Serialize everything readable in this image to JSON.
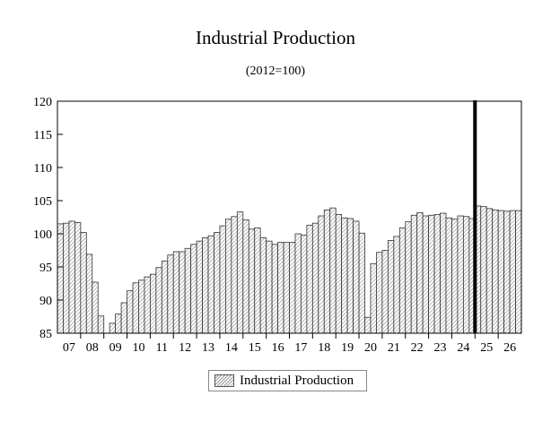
{
  "chart_data": {
    "type": "bar",
    "title": "Industrial Production",
    "subtitle": "(2012=100)",
    "legend": {
      "placement": "bottom-center",
      "entries": [
        "Industrial Production"
      ]
    },
    "ylim": [
      85,
      120
    ],
    "yticks": [
      85,
      90,
      95,
      100,
      105,
      110,
      115,
      120
    ],
    "grid": false,
    "x_labels": [
      "07",
      "08",
      "09",
      "10",
      "11",
      "12",
      "13",
      "14",
      "15",
      "16",
      "17",
      "18",
      "19",
      "20",
      "21",
      "22",
      "23",
      "24",
      "25",
      "26"
    ],
    "forecast_divider_after_year": "24",
    "series": [
      {
        "name": "Industrial Production",
        "values": [
          101.5,
          101.6,
          101.9,
          101.7,
          100.2,
          96.9,
          92.7,
          87.6,
          85.0,
          86.5,
          87.9,
          89.6,
          91.4,
          92.6,
          93.0,
          93.5,
          93.9,
          94.9,
          95.9,
          96.8,
          97.3,
          97.3,
          97.8,
          98.4,
          98.9,
          99.4,
          99.7,
          100.2,
          101.2,
          102.2,
          102.6,
          103.3,
          102.1,
          100.7,
          100.9,
          99.4,
          98.9,
          98.4,
          98.7,
          98.7,
          98.7,
          100.0,
          99.8,
          101.3,
          101.6,
          102.7,
          103.6,
          103.9,
          102.9,
          102.4,
          102.3,
          101.9,
          100.1,
          87.4,
          95.5,
          97.2,
          97.5,
          99.0,
          99.6,
          100.9,
          101.8,
          102.8,
          103.2,
          102.7,
          102.8,
          102.9,
          103.1,
          102.4,
          102.2,
          102.7,
          102.6,
          102.3,
          104.2,
          104.1,
          103.8,
          103.6,
          103.5,
          103.4,
          103.5,
          103.5
        ]
      }
    ]
  }
}
